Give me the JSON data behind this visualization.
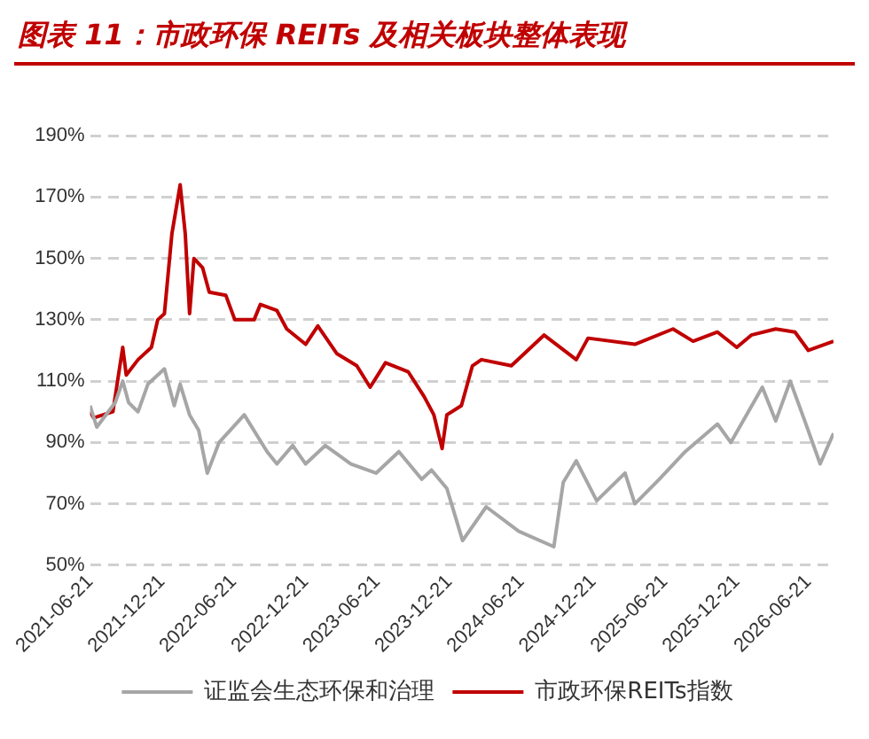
{
  "chart_data": {
    "type": "line",
    "title": "图表 11：市政环保 REITs 及相关板块整体表现",
    "ylim": [
      50,
      190
    ],
    "yticks": [
      {
        "value": 50,
        "label": "50%"
      },
      {
        "value": 70,
        "label": "70%"
      },
      {
        "value": 90,
        "label": "90%"
      },
      {
        "value": 110,
        "label": "110%"
      },
      {
        "value": 130,
        "label": "130%"
      },
      {
        "value": 150,
        "label": "150%"
      },
      {
        "value": 170,
        "label": "170%"
      },
      {
        "value": 190,
        "label": "190%"
      }
    ],
    "xlim": [
      "2021-06-21",
      "2026-08-24"
    ],
    "xticks": [
      {
        "value": "2021-06-21",
        "label": "2021-06-21"
      },
      {
        "value": "2021-12-21",
        "label": "2021-12-21"
      },
      {
        "value": "2022-06-21",
        "label": "2022-06-21"
      },
      {
        "value": "2022-12-21",
        "label": "2022-12-21"
      },
      {
        "value": "2023-06-21",
        "label": "2023-06-21"
      },
      {
        "value": "2023-12-21",
        "label": "2023-12-21"
      },
      {
        "value": "2024-06-21",
        "label": "2024-06-21"
      },
      {
        "value": "2024-12-21",
        "label": "2024-12-21"
      },
      {
        "value": "2025-06-21",
        "label": "2025-06-21"
      },
      {
        "value": "2025-12-21",
        "label": "2025-12-21"
      },
      {
        "value": "2026-06-21",
        "label": "2026-06-21"
      }
    ],
    "grid": "y",
    "legend": "bottom",
    "marker": "none",
    "line_style": "solid",
    "series": [
      {
        "name": "证监会生态环保和治理",
        "color": "#a6a6a6",
        "x": [
          "2021-06-21",
          "2021-07-08",
          "2021-08-24",
          "2021-09-12",
          "2021-09-27",
          "2021-10-21",
          "2021-11-15",
          "2021-12-27",
          "2022-01-21",
          "2022-02-05",
          "2022-03-01",
          "2022-03-24",
          "2022-04-15",
          "2022-05-15",
          "2022-07-18",
          "2022-09-14",
          "2022-10-09",
          "2022-11-18",
          "2022-12-21",
          "2023-02-09",
          "2023-04-15",
          "2023-06-18",
          "2023-08-15",
          "2023-10-12",
          "2023-11-06",
          "2023-12-15",
          "2024-01-24",
          "2024-03-24",
          "2024-06-15",
          "2024-09-12",
          "2024-10-06",
          "2024-11-08",
          "2024-12-30",
          "2025-03-12",
          "2025-04-06",
          "2025-06-07",
          "2025-08-12",
          "2025-11-02",
          "2025-12-06",
          "2026-02-24",
          "2026-03-30",
          "2026-05-06",
          "2026-06-12",
          "2026-07-21",
          "2026-08-24"
        ],
        "values": [
          102,
          95,
          103,
          110,
          103,
          100,
          109,
          114,
          102,
          109,
          99,
          94,
          80,
          90,
          99,
          87,
          83,
          89,
          83,
          89,
          83,
          80,
          87,
          78,
          81,
          75,
          58,
          69,
          61,
          56,
          77,
          84,
          71,
          80,
          70,
          78,
          87,
          96,
          90,
          108,
          97,
          110,
          97,
          83,
          93
        ]
      },
      {
        "name": "市政环保REITs指数",
        "color": "#c00000",
        "x": [
          "2021-06-21",
          "2021-06-30",
          "2021-08-18",
          "2021-09-12",
          "2021-09-21",
          "2021-10-21",
          "2021-11-24",
          "2021-12-10",
          "2021-12-27",
          "2022-01-15",
          "2022-02-05",
          "2022-02-18",
          "2022-03-01",
          "2022-03-12",
          "2022-04-03",
          "2022-04-20",
          "2022-06-01",
          "2022-06-24",
          "2022-08-12",
          "2022-08-28",
          "2022-10-09",
          "2022-11-03",
          "2022-12-21",
          "2023-01-21",
          "2023-03-10",
          "2023-04-30",
          "2023-06-03",
          "2023-07-12",
          "2023-09-08",
          "2023-10-18",
          "2023-11-12",
          "2023-12-03",
          "2023-12-15",
          "2024-01-21",
          "2024-02-18",
          "2024-03-12",
          "2024-05-27",
          "2024-08-18",
          "2024-11-08",
          "2024-12-08",
          "2025-04-06",
          "2025-07-12",
          "2025-09-01",
          "2025-11-02",
          "2025-12-21",
          "2026-01-27",
          "2026-03-30",
          "2026-05-18",
          "2026-06-21",
          "2026-08-24"
        ],
        "values": [
          100,
          98,
          100,
          121,
          112,
          117,
          121,
          130,
          132,
          158,
          174,
          158,
          132,
          150,
          147,
          139,
          138,
          130,
          130,
          135,
          133,
          127,
          122,
          128,
          119,
          115,
          108,
          116,
          113,
          105,
          99,
          88,
          99,
          102,
          115,
          117,
          115,
          125,
          117,
          124,
          122,
          127,
          123,
          126,
          121,
          125,
          127,
          126,
          120,
          123
        ]
      }
    ]
  }
}
